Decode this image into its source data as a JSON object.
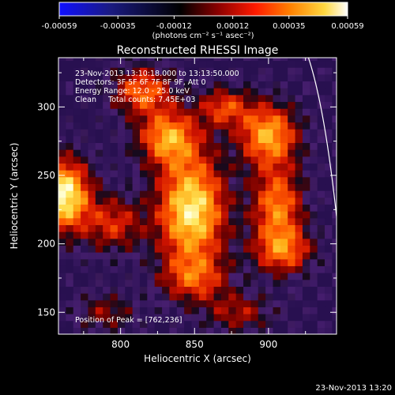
{
  "chart_data": {
    "type": "heatmap",
    "title": "Reconstructed RHESSI Image",
    "xlabel": "Heliocentric X (arcsec)",
    "ylabel": "Heliocentric Y (arcsec)",
    "xlim": [
      758,
      946
    ],
    "ylim": [
      134,
      336
    ],
    "x_ticks": [
      800,
      850,
      900
    ],
    "y_ticks": [
      150,
      200,
      250,
      300
    ],
    "colorbar": {
      "range": [
        -0.00059,
        0.00059
      ],
      "ticks": [
        "-0.00059",
        "-0.00035",
        "-0.00012",
        "0.00012",
        "0.00035",
        "0.00059"
      ],
      "units": "(photons cm⁻² s⁻¹ asec⁻²)",
      "colormap": [
        "#1010ff",
        "#000000",
        "#ff0000",
        "#ff8000",
        "#ffff80",
        "#ffffff"
      ]
    },
    "annotations": [
      "23-Nov-2013 13:10:18.000 to 13:13:50.000",
      "Detectors: 3F 5F 6F 7F 8F 9F, Att 0",
      "Energy Range: 12.0 - 25.0 keV",
      "Clean     Total counts: 7.45E+03"
    ],
    "peak_label": "Position of Peak = [762,236]",
    "peak_position": [
      762,
      236
    ],
    "limb_curve": [
      [
        927,
        336
      ],
      [
        938,
        300
      ],
      [
        946,
        220
      ]
    ],
    "sources": [
      {
        "x": 762,
        "y": 236,
        "rx": 12,
        "ry": 18,
        "intensity": 1.0
      },
      {
        "x": 848,
        "y": 225,
        "rx": 16,
        "ry": 28,
        "intensity": 0.95
      },
      {
        "x": 832,
        "y": 278,
        "rx": 14,
        "ry": 14,
        "intensity": 0.7
      },
      {
        "x": 815,
        "y": 312,
        "rx": 14,
        "ry": 12,
        "intensity": 0.6
      },
      {
        "x": 900,
        "y": 280,
        "rx": 14,
        "ry": 16,
        "intensity": 0.75
      },
      {
        "x": 906,
        "y": 228,
        "rx": 12,
        "ry": 20,
        "intensity": 0.65
      },
      {
        "x": 910,
        "y": 195,
        "rx": 14,
        "ry": 12,
        "intensity": 0.55
      },
      {
        "x": 850,
        "y": 175,
        "rx": 16,
        "ry": 12,
        "intensity": 0.45
      },
      {
        "x": 795,
        "y": 215,
        "rx": 14,
        "ry": 14,
        "intensity": 0.45
      },
      {
        "x": 870,
        "y": 300,
        "rx": 12,
        "ry": 10,
        "intensity": 0.5
      },
      {
        "x": 790,
        "y": 150,
        "rx": 14,
        "ry": 10,
        "intensity": 0.3
      },
      {
        "x": 880,
        "y": 150,
        "rx": 16,
        "ry": 10,
        "intensity": 0.35
      }
    ]
  },
  "footer": {
    "timestamp": "23-Nov-2013 13:20"
  }
}
